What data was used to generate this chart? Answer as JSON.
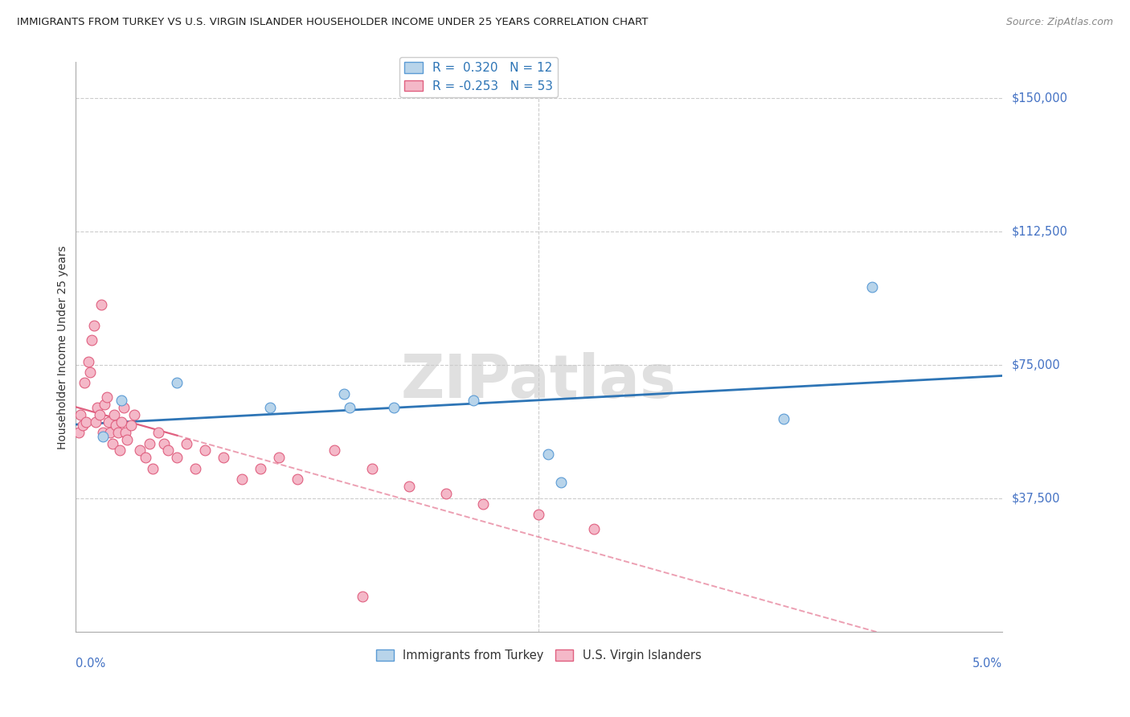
{
  "title": "IMMIGRANTS FROM TURKEY VS U.S. VIRGIN ISLANDER HOUSEHOLDER INCOME UNDER 25 YEARS CORRELATION CHART",
  "source": "Source: ZipAtlas.com",
  "ylabel": "Householder Income Under 25 years",
  "xlim": [
    0.0,
    5.0
  ],
  "ylim": [
    0,
    160000
  ],
  "yticks": [
    37500,
    75000,
    112500,
    150000
  ],
  "ytick_labels": [
    "$37,500",
    "$75,000",
    "$112,500",
    "$150,000"
  ],
  "background_color": "#ffffff",
  "watermark_text": "ZIPatlas",
  "blue_series": {
    "name": "Immigrants from Turkey",
    "color": "#b8d4ea",
    "edge_color": "#5b9bd5",
    "R": 0.32,
    "N": 12,
    "trend_color": "#2e75b6",
    "trend_style": "solid",
    "x": [
      0.15,
      0.25,
      0.55,
      1.05,
      1.45,
      1.48,
      1.72,
      2.15,
      2.55,
      2.62,
      3.82,
      4.3
    ],
    "y": [
      55000,
      65000,
      70000,
      63000,
      67000,
      63000,
      63000,
      65000,
      50000,
      42000,
      60000,
      97000
    ]
  },
  "pink_series": {
    "name": "U.S. Virgin Islanders",
    "color": "#f4b8c8",
    "edge_color": "#e06080",
    "R": -0.253,
    "N": 53,
    "trend_color": "#e06080",
    "trend_style": "dashed",
    "x": [
      0.02,
      0.03,
      0.04,
      0.05,
      0.06,
      0.07,
      0.08,
      0.09,
      0.1,
      0.11,
      0.12,
      0.13,
      0.14,
      0.15,
      0.16,
      0.17,
      0.18,
      0.19,
      0.2,
      0.21,
      0.22,
      0.23,
      0.24,
      0.25,
      0.26,
      0.27,
      0.28,
      0.3,
      0.32,
      0.35,
      0.38,
      0.4,
      0.42,
      0.45,
      0.48,
      0.5,
      0.55,
      0.6,
      0.65,
      0.7,
      0.8,
      0.9,
      1.0,
      1.1,
      1.2,
      1.4,
      1.6,
      1.8,
      2.0,
      2.2,
      2.5,
      2.8,
      1.55
    ],
    "y": [
      56000,
      61000,
      58000,
      70000,
      59000,
      76000,
      73000,
      82000,
      86000,
      59000,
      63000,
      61000,
      92000,
      56000,
      64000,
      66000,
      59000,
      56000,
      53000,
      61000,
      58000,
      56000,
      51000,
      59000,
      63000,
      56000,
      54000,
      58000,
      61000,
      51000,
      49000,
      53000,
      46000,
      56000,
      53000,
      51000,
      49000,
      53000,
      46000,
      51000,
      49000,
      43000,
      46000,
      49000,
      43000,
      51000,
      46000,
      41000,
      39000,
      36000,
      33000,
      29000,
      10000
    ]
  }
}
